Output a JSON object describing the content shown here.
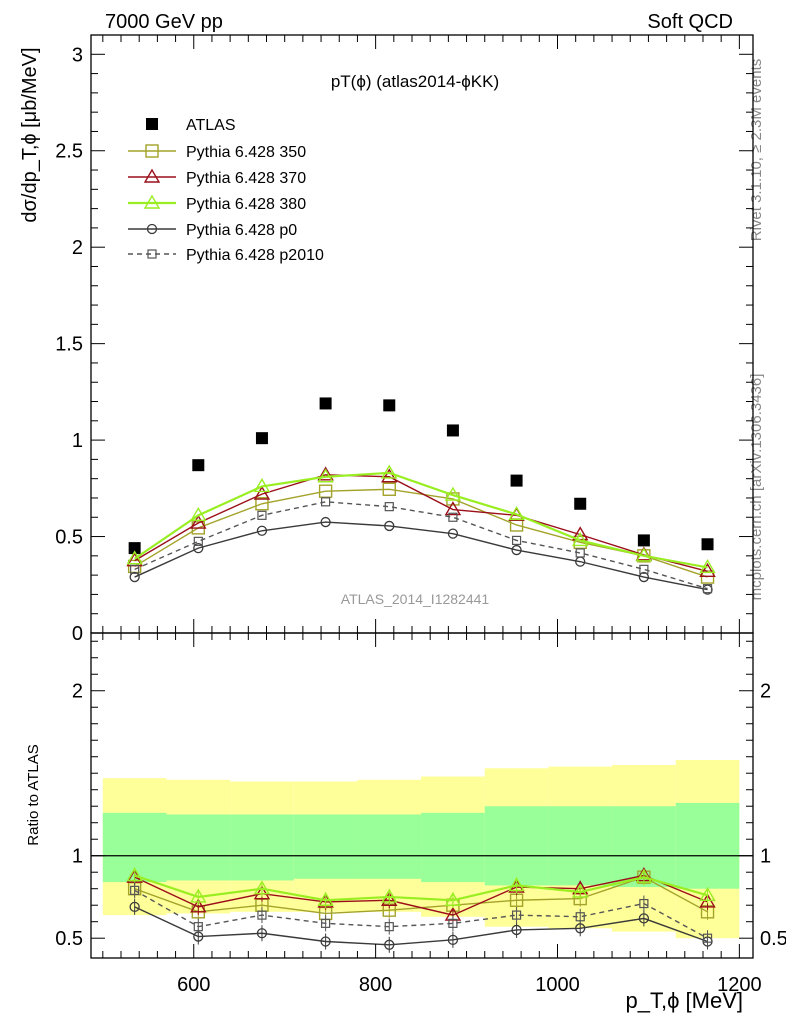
{
  "header": {
    "left": "7000 GeV pp",
    "right": "Soft QCD"
  },
  "side": {
    "rivet": "Rivet 3.1.10, ≥ 2.3M events",
    "mcplots": "mcplots.cern.ch [arXiv:1306.3436]"
  },
  "chart_data": [
    {
      "type": "scatter",
      "title": "pT(ϕ) (atlas2014-ϕKK)",
      "watermark": "ATLAS_2014_I1282441",
      "ylabel": "dσ/dp_T,ϕ [μb/MeV]",
      "xlim": [
        487,
        1215
      ],
      "ylim": [
        0,
        3.1
      ],
      "yticks": [
        "0",
        "0.5",
        "1",
        "1.5",
        "2",
        "2.5",
        "3"
      ],
      "x": [
        535,
        605,
        675,
        745,
        815,
        885,
        955,
        1025,
        1095,
        1165
      ],
      "series": [
        {
          "name": "ATLAS",
          "color": "#000000",
          "marker": "square",
          "line": "none",
          "values": [
            0.44,
            0.87,
            1.01,
            1.19,
            1.18,
            1.05,
            0.79,
            0.67,
            0.48,
            0.46
          ]
        },
        {
          "name": "Pythia 6.428 350",
          "color": "#a3a32a",
          "marker": "open-square",
          "line": "solid",
          "values": [
            0.345,
            0.545,
            0.67,
            0.735,
            0.745,
            0.695,
            0.56,
            0.47,
            0.4,
            0.29
          ]
        },
        {
          "name": "Pythia 6.428 370",
          "color": "#9b0f1a",
          "marker": "open-triangle",
          "line": "solid",
          "values": [
            0.375,
            0.57,
            0.72,
            0.82,
            0.81,
            0.64,
            0.61,
            0.51,
            0.405,
            0.32
          ]
        },
        {
          "name": "Pythia 6.428 380",
          "color": "#99ee22",
          "marker": "open-triangle",
          "line": "solid",
          "values": [
            0.385,
            0.61,
            0.76,
            0.81,
            0.83,
            0.715,
            0.615,
            0.48,
            0.4,
            0.34
          ]
        },
        {
          "name": "Pythia 6.428 p0",
          "color": "#3a3a3a",
          "marker": "open-circle",
          "line": "solid",
          "values": [
            0.29,
            0.44,
            0.53,
            0.575,
            0.555,
            0.515,
            0.43,
            0.37,
            0.29,
            0.225
          ]
        },
        {
          "name": "Pythia 6.428 p2010",
          "color": "#555555",
          "marker": "open-square-small",
          "line": "dashed",
          "values": [
            0.33,
            0.475,
            0.61,
            0.68,
            0.655,
            0.6,
            0.48,
            0.415,
            0.33,
            0.23
          ]
        }
      ]
    },
    {
      "type": "scatter",
      "ylabel": "Ratio to ATLAS",
      "xlabel": "p_T,ϕ [MeV]",
      "xlim": [
        487,
        1215
      ],
      "ylim": [
        0.38,
        2.35
      ],
      "xticks": [
        "600",
        "800",
        "1000",
        "1200"
      ],
      "yticks": [
        "0.5",
        "1",
        "2"
      ],
      "bands": {
        "edges": [
          500,
          570,
          640,
          710,
          780,
          850,
          920,
          990,
          1060,
          1130,
          1200
        ],
        "outer_lo": [
          0.64,
          0.65,
          0.66,
          0.66,
          0.66,
          0.63,
          0.57,
          0.56,
          0.54,
          0.5
        ],
        "outer_hi": [
          1.47,
          1.46,
          1.45,
          1.45,
          1.46,
          1.48,
          1.53,
          1.54,
          1.55,
          1.58
        ],
        "inner_lo": [
          0.84,
          0.85,
          0.85,
          0.86,
          0.86,
          0.84,
          0.82,
          0.82,
          0.81,
          0.8
        ],
        "inner_hi": [
          1.26,
          1.25,
          1.25,
          1.25,
          1.25,
          1.26,
          1.3,
          1.3,
          1.3,
          1.32
        ]
      },
      "x": [
        535,
        605,
        675,
        745,
        815,
        885,
        955,
        1025,
        1095,
        1165
      ],
      "series": [
        {
          "name": "Pythia 6.428 350",
          "color": "#a3a32a",
          "marker": "open-square",
          "line": "solid",
          "values": [
            0.8,
            0.66,
            0.7,
            0.65,
            0.67,
            0.7,
            0.73,
            0.74,
            0.87,
            0.66
          ]
        },
        {
          "name": "Pythia 6.428 370",
          "color": "#9b0f1a",
          "marker": "open-triangle",
          "line": "solid",
          "values": [
            0.87,
            0.69,
            0.77,
            0.72,
            0.73,
            0.64,
            0.81,
            0.8,
            0.88,
            0.72
          ]
        },
        {
          "name": "Pythia 6.428 380",
          "color": "#99ee22",
          "marker": "open-triangle",
          "line": "solid",
          "values": [
            0.88,
            0.75,
            0.8,
            0.73,
            0.75,
            0.73,
            0.82,
            0.78,
            0.87,
            0.76
          ]
        },
        {
          "name": "Pythia 6.428 p0",
          "color": "#3a3a3a",
          "marker": "open-circle",
          "line": "solid",
          "values": [
            0.69,
            0.51,
            0.53,
            0.48,
            0.46,
            0.49,
            0.55,
            0.56,
            0.62,
            0.48
          ]
        },
        {
          "name": "Pythia 6.428 p2010",
          "color": "#555555",
          "marker": "open-square-small",
          "line": "dashed",
          "values": [
            0.79,
            0.57,
            0.64,
            0.59,
            0.57,
            0.59,
            0.64,
            0.63,
            0.71,
            0.5
          ]
        }
      ]
    }
  ]
}
